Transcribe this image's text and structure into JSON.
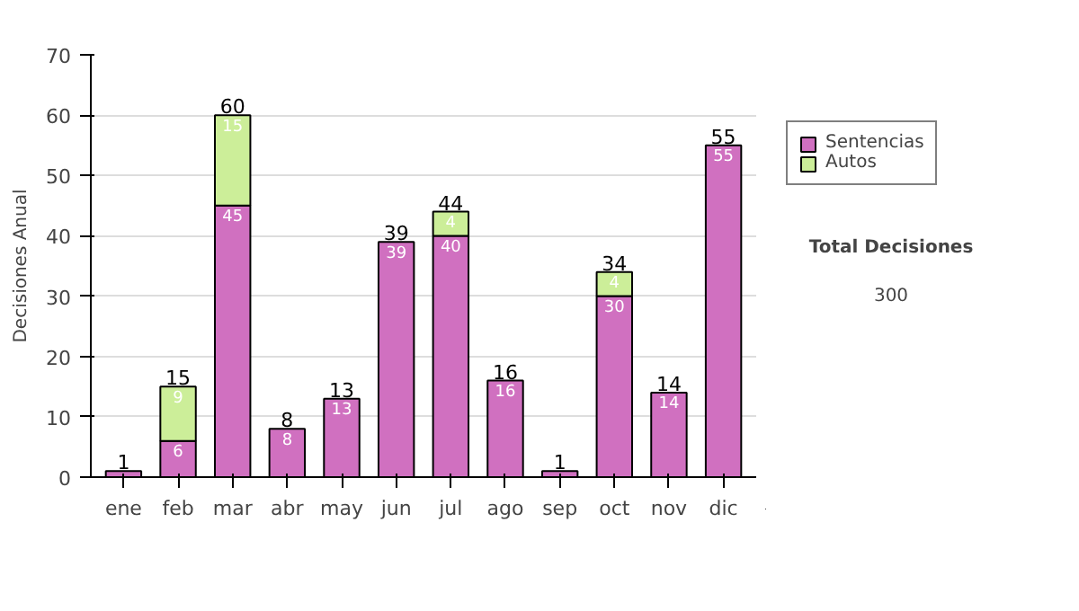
{
  "chart_data": {
    "type": "bar",
    "stacked": true,
    "ylabel": "Decisiones Anual",
    "categories": [
      "ene",
      "feb",
      "mar",
      "abr",
      "may",
      "jun",
      "jul",
      "ago",
      "sep",
      "oct",
      "nov",
      "dic"
    ],
    "series": [
      {
        "name": "Sentencias",
        "color": "#d070c0",
        "values": [
          1,
          6,
          45,
          8,
          13,
          39,
          40,
          16,
          1,
          30,
          14,
          55
        ],
        "value_labels": [
          null,
          "6",
          "45",
          "8",
          "13",
          "39",
          "40",
          "16",
          null,
          "30",
          "14",
          "55"
        ]
      },
      {
        "name": "Autos",
        "color": "#ccee99",
        "values": [
          0,
          9,
          15,
          0,
          0,
          0,
          4,
          0,
          0,
          4,
          0,
          0
        ],
        "value_labels": [
          null,
          "9",
          "15",
          null,
          null,
          null,
          "4",
          null,
          null,
          "4",
          null,
          null
        ]
      }
    ],
    "totals": [
      "1",
      "15",
      "60",
      "8",
      "13",
      "39",
      "44",
      "16",
      "1",
      "34",
      "14",
      "55"
    ],
    "ylim": [
      0,
      70
    ],
    "yticks": [
      0,
      10,
      20,
      30,
      40,
      50,
      60,
      70
    ],
    "grid": "y",
    "legend": "right",
    "annotations": [
      "Total Decisiones",
      "300"
    ]
  }
}
